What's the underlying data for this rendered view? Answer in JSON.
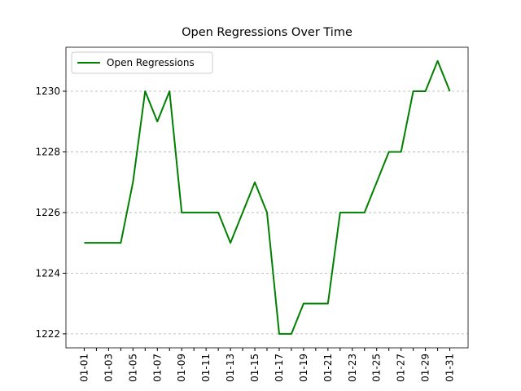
{
  "chart_data": {
    "type": "line",
    "title": "Open Regressions Over Time",
    "categories": [
      "01-01",
      null,
      "01-03",
      null,
      "01-05",
      null,
      "01-07",
      null,
      "01-09",
      null,
      "01-11",
      null,
      "01-13",
      null,
      "01-15",
      null,
      "01-17",
      null,
      "01-19",
      null,
      "01-21",
      null,
      "01-23",
      null,
      "01-25",
      null,
      "01-27",
      null,
      "01-29",
      null,
      "01-31"
    ],
    "series": [
      {
        "name": "Open Regressions",
        "color": "#008000",
        "values": [
          1225,
          1225,
          1225,
          1225,
          1227,
          1230,
          1229,
          1230,
          1226,
          1226,
          1226,
          1226,
          1225,
          1226,
          1227,
          1226,
          1222,
          1222,
          1223,
          1223,
          1223,
          1226,
          1226,
          1226,
          1227,
          1228,
          1228,
          1230,
          1230,
          1231,
          1230
        ]
      }
    ],
    "ylim": [
      1221.54,
      1231.45
    ],
    "yticks": [
      1222,
      1224,
      1226,
      1228,
      1230
    ],
    "grid": "y",
    "legend": "upper-left"
  }
}
